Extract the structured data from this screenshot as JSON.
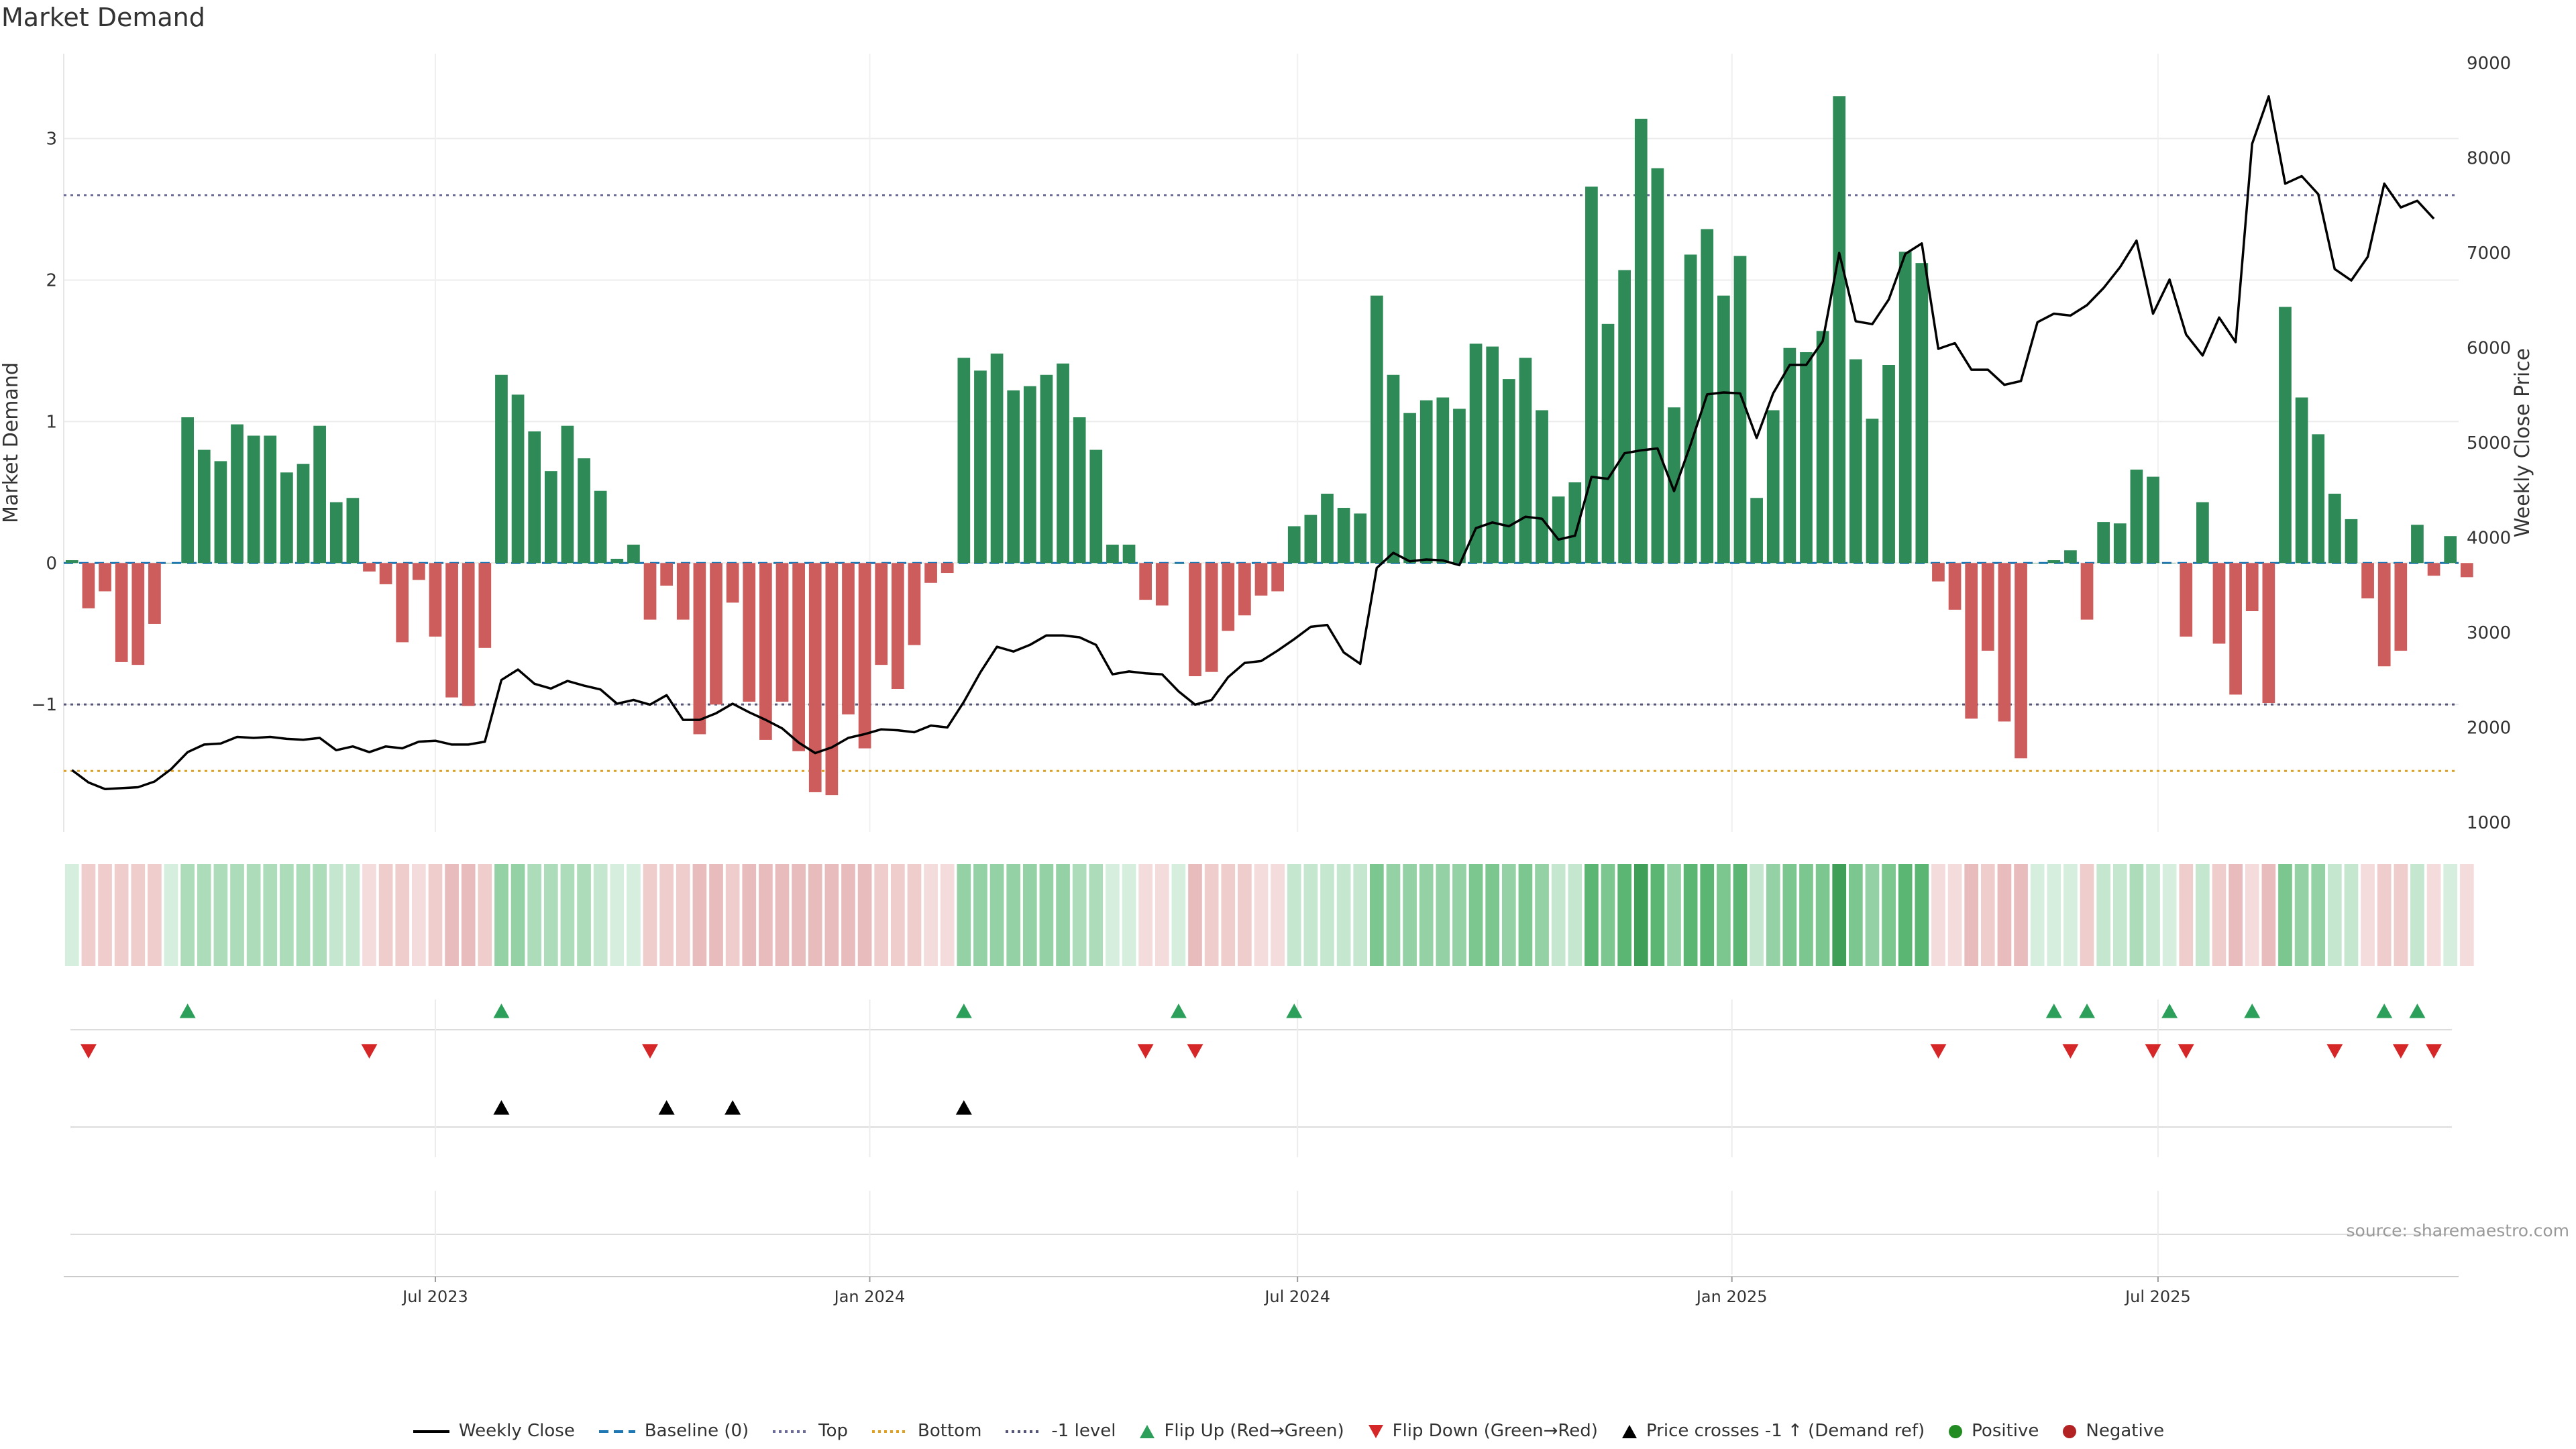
{
  "title": "Market Demand",
  "source": "source: sharemaestro.com",
  "colors": {
    "positive": "#2e8b57",
    "negative": "#cd5c5c",
    "price": "#000000",
    "baseline": "#1f77b4",
    "top": "#6b6b9a",
    "bottom": "#e0a020",
    "minus1": "#555577",
    "flip_up": "#2ca05a",
    "flip_down": "#d62728",
    "cross": "#000000",
    "positive_dot": "#228b22",
    "negative_dot": "#b22222"
  },
  "legend": [
    {
      "key": "price",
      "label": "Weekly Close",
      "icon": "line-solid-icon"
    },
    {
      "key": "baseline",
      "label": "Baseline (0)",
      "icon": "line-dashed-icon"
    },
    {
      "key": "top",
      "label": "Top",
      "icon": "line-dotted-icon"
    },
    {
      "key": "bottom",
      "label": "Bottom",
      "icon": "line-dotted-icon"
    },
    {
      "key": "minus1",
      "label": "-1 level",
      "icon": "line-dotted-icon"
    },
    {
      "key": "flip_up",
      "label": "Flip Up (Red→Green)",
      "icon": "triangle-up-icon"
    },
    {
      "key": "flip_down",
      "label": "Flip Down (Green→Red)",
      "icon": "triangle-down-icon"
    },
    {
      "key": "cross",
      "label": "Price crosses -1 ↑ (Demand ref)",
      "icon": "triangle-up-icon"
    },
    {
      "key": "positive_dot",
      "label": "Positive",
      "icon": "circle-icon"
    },
    {
      "key": "negative_dot",
      "label": "Negative",
      "icon": "circle-icon"
    }
  ],
  "chart_data": {
    "type": "bar",
    "title": "Market Demand",
    "ylabel": "Market Demand",
    "y2label": "Weekly Close Price",
    "ylim": [
      -1.9,
      3.6
    ],
    "y2lim": [
      900,
      9100
    ],
    "yticks": [
      -1,
      0,
      1,
      2,
      3
    ],
    "ytick_labels": [
      "−1",
      "0",
      "1",
      "2",
      "3"
    ],
    "y2ticks": [
      1000,
      2000,
      3000,
      4000,
      5000,
      6000,
      7000,
      8000,
      9000
    ],
    "ref_lines": {
      "baseline": 0,
      "top": 2.6,
      "bottom": -1.47,
      "minus1": -1
    },
    "x_range": [
      0,
      144
    ],
    "x_ticks": [
      {
        "label": "Jul 2023",
        "week": 22
      },
      {
        "label": "Jan 2024",
        "week": 48.3
      },
      {
        "label": "Jul 2024",
        "week": 74.2
      },
      {
        "label": "Jan 2025",
        "week": 100.5
      },
      {
        "label": "Jul 2025",
        "week": 126.3
      }
    ],
    "demand": [
      0.02,
      -0.32,
      -0.2,
      -0.7,
      -0.72,
      -0.43,
      0.0,
      1.03,
      0.8,
      0.72,
      0.98,
      0.9,
      0.9,
      0.64,
      0.7,
      0.97,
      0.43,
      0.46,
      -0.06,
      -0.15,
      -0.56,
      -0.12,
      -0.52,
      -0.95,
      -1.01,
      -0.6,
      1.33,
      1.19,
      0.93,
      0.65,
      0.97,
      0.74,
      0.51,
      0.03,
      0.13,
      -0.4,
      -0.16,
      -0.4,
      -1.21,
      -1.0,
      -0.28,
      -0.98,
      -1.25,
      -0.98,
      -1.33,
      -1.62,
      -1.64,
      -1.07,
      -1.31,
      -0.72,
      -0.89,
      -0.58,
      -0.14,
      -0.07,
      1.45,
      1.36,
      1.48,
      1.22,
      1.25,
      1.33,
      1.41,
      1.03,
      0.8,
      0.13,
      0.13,
      -0.26,
      -0.3,
      0.0,
      -0.8,
      -0.77,
      -0.48,
      -0.37,
      -0.23,
      -0.2,
      0.26,
      0.34,
      0.49,
      0.39,
      0.35,
      1.89,
      1.33,
      1.06,
      1.15,
      1.17,
      1.09,
      1.55,
      1.53,
      1.3,
      1.45,
      1.08,
      0.47,
      0.57,
      2.66,
      1.69,
      2.07,
      3.14,
      2.79,
      1.1,
      2.18,
      2.36,
      1.89,
      2.17,
      0.46,
      1.08,
      1.52,
      1.49,
      1.64,
      3.3,
      1.44,
      1.02,
      1.4,
      2.2,
      2.12,
      -0.13,
      -0.33,
      -1.1,
      -0.62,
      -1.12,
      -1.38,
      0.0,
      0.02,
      0.09,
      -0.4,
      0.29,
      0.28,
      0.66,
      0.61,
      0.0,
      -0.52,
      0.43,
      -0.57,
      -0.93,
      -0.34,
      -0.99,
      1.81,
      1.17,
      0.91,
      0.49,
      0.31,
      -0.25,
      -0.73,
      -0.62,
      0.27,
      -0.09,
      0.19,
      -0.1
    ],
    "weekly_close": [
      1550,
      1420,
      1350,
      1360,
      1370,
      1430,
      1560,
      1740,
      1820,
      1830,
      1900,
      1890,
      1900,
      1880,
      1870,
      1890,
      1760,
      1800,
      1740,
      1800,
      1780,
      1850,
      1860,
      1820,
      1820,
      1850,
      2500,
      2610,
      2460,
      2410,
      2490,
      2440,
      2400,
      2250,
      2290,
      2240,
      2340,
      2080,
      2080,
      2150,
      2250,
      2160,
      2080,
      1990,
      1840,
      1730,
      1790,
      1890,
      1930,
      1980,
      1970,
      1950,
      2020,
      2000,
      2270,
      2580,
      2850,
      2800,
      2870,
      2970,
      2970,
      2950,
      2870,
      2560,
      2590,
      2570,
      2560,
      2380,
      2240,
      2290,
      2530,
      2680,
      2700,
      2810,
      2930,
      3060,
      3080,
      2790,
      2670,
      3680,
      3840,
      3750,
      3770,
      3760,
      3710,
      4100,
      4160,
      4120,
      4220,
      4200,
      3980,
      4020,
      4640,
      4620,
      4890,
      4920,
      4940,
      4490,
      4980,
      5510,
      5530,
      5520,
      5050,
      5520,
      5820,
      5820,
      6070,
      7000,
      6280,
      6250,
      6510,
      6990,
      7100,
      5990,
      6050,
      5770,
      5770,
      5610,
      5650,
      6270,
      6360,
      6340,
      6450,
      6630,
      6850,
      7130,
      6360,
      6720,
      6140,
      5920,
      6320,
      6060,
      8150,
      8650,
      7730,
      7810,
      7620,
      6830,
      6710,
      6960,
      7730,
      7480,
      7550,
      7360
    ],
    "heat_intensity": [
      1,
      2,
      2,
      2,
      2,
      2,
      1,
      3,
      3,
      3,
      3,
      3,
      3,
      3,
      3,
      3,
      2,
      2,
      1,
      2,
      2,
      1,
      2,
      3,
      3,
      2,
      4,
      4,
      3,
      3,
      3,
      3,
      2,
      1,
      1,
      2,
      2,
      2,
      3,
      3,
      2,
      3,
      3,
      3,
      3,
      3,
      3,
      3,
      3,
      2,
      2,
      2,
      1,
      1,
      4,
      4,
      4,
      4,
      4,
      4,
      4,
      3,
      3,
      1,
      1,
      1,
      1,
      1,
      3,
      2,
      2,
      2,
      1,
      1,
      2,
      2,
      2,
      2,
      2,
      5,
      4,
      4,
      4,
      4,
      4,
      5,
      5,
      4,
      5,
      4,
      2,
      2,
      6,
      5,
      6,
      7,
      6,
      4,
      6,
      6,
      5,
      6,
      2,
      4,
      5,
      5,
      5,
      7,
      5,
      4,
      5,
      6,
      6,
      1,
      1,
      3,
      2,
      3,
      3,
      1,
      1,
      1,
      2,
      2,
      2,
      3,
      2,
      1,
      2,
      2,
      2,
      3,
      1,
      3,
      5,
      4,
      4,
      2,
      2,
      1,
      2,
      2,
      2,
      1,
      1,
      1
    ],
    "flip_up_weeks": [
      7,
      26,
      54,
      67,
      74,
      120,
      122,
      127,
      132,
      140,
      142
    ],
    "flip_down_weeks": [
      1,
      18,
      35,
      65,
      68,
      113,
      121,
      126,
      128,
      137,
      141,
      143
    ],
    "price_cross_weeks": [
      26,
      36,
      40,
      54
    ]
  }
}
